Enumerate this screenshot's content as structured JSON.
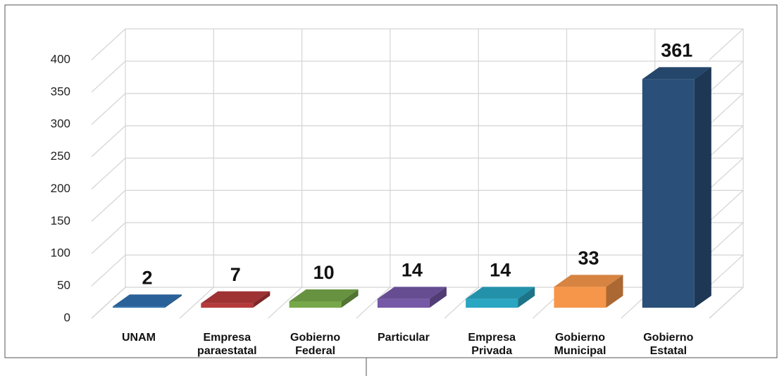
{
  "chart_data": {
    "type": "bar3d",
    "categories": [
      "UNAM",
      "Empresa paraestatal",
      "Gobierno Federal",
      "Particular",
      "Empresa Privada",
      "Gobierno Municipal",
      "Gobierno Estatal"
    ],
    "values": [
      2,
      7,
      10,
      14,
      14,
      33,
      361
    ],
    "colors": [
      "#2f6fae",
      "#b63a3b",
      "#76a84a",
      "#7558a6",
      "#2aa5c2",
      "#f5964a",
      "#2a5079"
    ],
    "ylim": [
      0,
      400
    ],
    "yticks": [
      0,
      50,
      100,
      150,
      200,
      250,
      300,
      350,
      400
    ],
    "grid": true
  }
}
